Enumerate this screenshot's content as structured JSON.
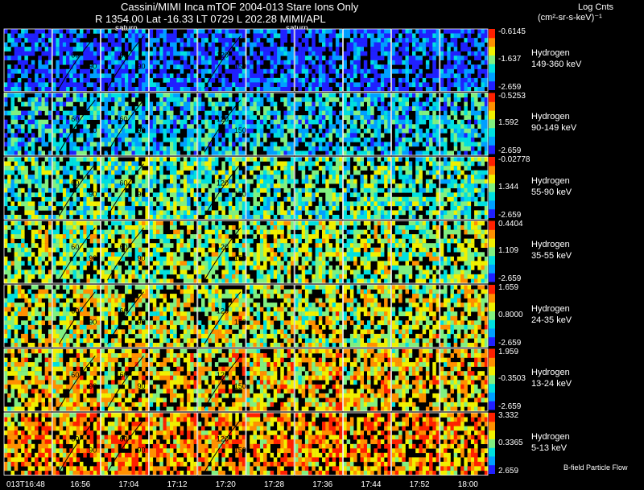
{
  "header": {
    "title": "Cassini/MIMI Inca mTOF  2004-013   Stare   Ions Only",
    "subtitle": "R        1354.00 Lat -16.33 LT 0729 L        202.28  MIMI/APL",
    "units_line1": "Log Cnts",
    "units_line2": "(cm²-sr-s-keV)⁻¹"
  },
  "panel_labels": [
    "saturn",
    "saturn"
  ],
  "footer_note": "B-field Particle Flow",
  "chart_data": {
    "type": "heatmap",
    "title": "Cassini/MIMI Inca mTOF  2004-013   Stare   Ions Only",
    "x_time_labels": [
      "013T16:48",
      "16:56",
      "17:04",
      "17:12",
      "17:20",
      "17:28",
      "17:36",
      "17:44",
      "17:52",
      "18:00"
    ],
    "species": [
      {
        "name": "Hydrogen",
        "range": "149-360 keV",
        "max": "-0.6145",
        "mid": "-1.637",
        "min": "-2.659"
      },
      {
        "name": "Hydrogen",
        "range": "90-149 keV",
        "max": "-0.5253",
        "mid": "1.592",
        "min": "-2.659"
      },
      {
        "name": "Hydrogen",
        "range": "55-90 keV",
        "max": "-0.02778",
        "mid": "1.344",
        "min": "-2.659"
      },
      {
        "name": "Hydrogen",
        "range": "35-55 keV",
        "max": "0.4404",
        "mid": "1.109",
        "min": "-2.659"
      },
      {
        "name": "Hydrogen",
        "range": "24-35 keV",
        "max": "1.659",
        "mid": "0.8000",
        "min": "-2.659"
      },
      {
        "name": "Hydrogen",
        "range": "13-24 keV",
        "max": "1.959",
        "mid": "-0.3503",
        "min": "-2.659"
      },
      {
        "name": "Hydrogen",
        "range": "5-13 keV",
        "max": "3.332",
        "mid": "0.3365",
        "min": "2.659"
      }
    ],
    "intensity_levels": [
      0.12,
      0.3,
      0.42,
      0.5,
      0.55,
      0.62,
      0.7
    ],
    "contour_labels": [
      "60",
      "90",
      "120",
      "150"
    ],
    "colormap": [
      "#2020ff",
      "#00a0ff",
      "#00e0e0",
      "#80f080",
      "#f0f000",
      "#ff9000",
      "#ff2000"
    ]
  }
}
